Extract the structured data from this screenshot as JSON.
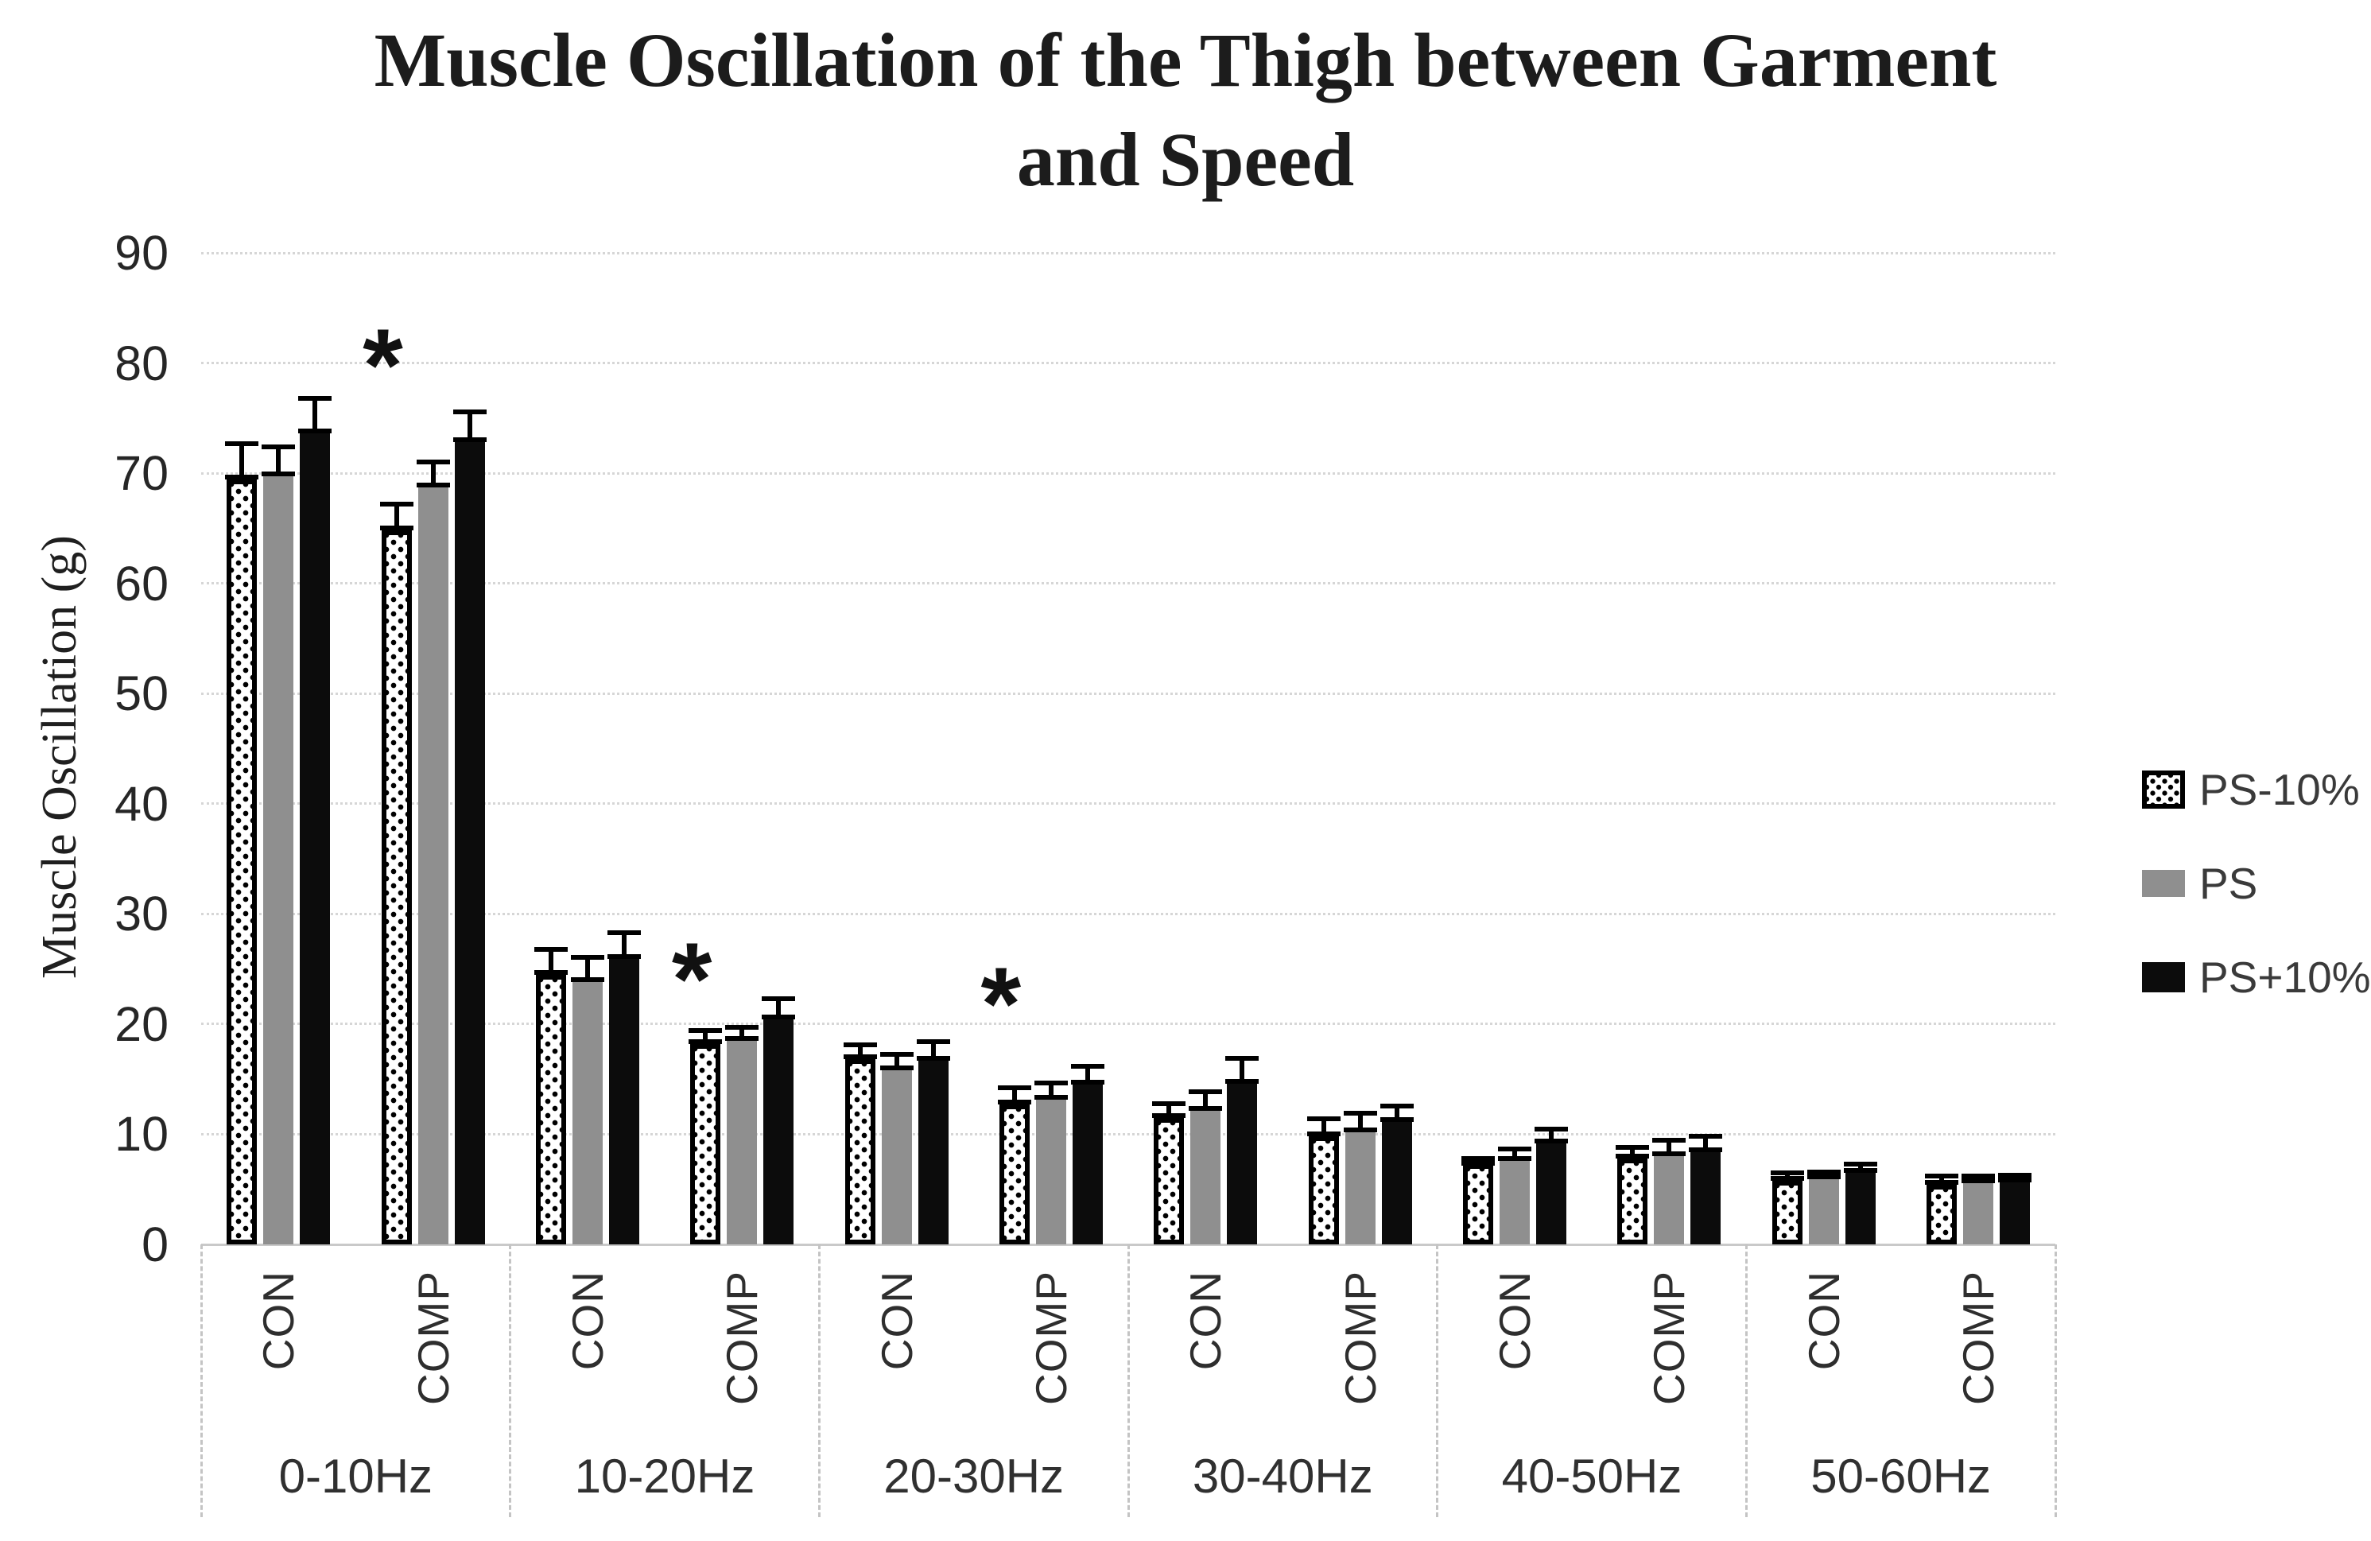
{
  "chart": {
    "title": "Muscle Oscillation of the Thigh between Garment and Speed",
    "title_lines": [
      "Muscle Oscillation of the Thigh between Garment",
      "and Speed"
    ],
    "y_axis": {
      "label": "Muscle Oscillation (g)",
      "min": 0,
      "max": 90,
      "step": 10,
      "tick_labels": [
        "0",
        "10",
        "20",
        "30",
        "40",
        "50",
        "60",
        "70",
        "80",
        "90"
      ]
    },
    "x_axis": {
      "condition_labels": [
        "CON",
        "COMP"
      ],
      "group_labels": [
        "0-10Hz",
        "10-20Hz",
        "20-30Hz",
        "30-40Hz",
        "40-50Hz",
        "50-60Hz"
      ]
    }
  },
  "chart_data": {
    "type": "bar",
    "title": "Muscle Oscillation of the Thigh between Garment and Speed",
    "xlabel": "",
    "ylabel": "Muscle Oscillation (g)",
    "ylim": [
      0,
      90
    ],
    "ytick_step": 10,
    "grid": "horizontal-dotted",
    "error_bars": "upper",
    "legend_position": "right",
    "series": [
      {
        "name": "PS-10%",
        "style": "dotted",
        "fill": "#ffffff",
        "border": "#000000"
      },
      {
        "name": "PS",
        "style": "gray",
        "fill": "#8f8f8f",
        "border": "none"
      },
      {
        "name": "PS+10%",
        "style": "black",
        "fill": "#0c0c0c",
        "border": "none"
      }
    ],
    "groups": [
      {
        "label": "0-10Hz",
        "subgroups": [
          {
            "label": "CON",
            "values": [
              69.4,
              69.7,
              73.6
            ],
            "errors": [
              3.5,
              2.9,
              3.4
            ]
          },
          {
            "label": "COMP",
            "values": [
              64.8,
              68.7,
              72.8
            ],
            "errors": [
              2.6,
              2.5,
              3.0
            ],
            "significance": {
              "marker": "*",
              "y": 82
            }
          }
        ]
      },
      {
        "label": "10-20Hz",
        "subgroups": [
          {
            "label": "CON",
            "values": [
              24.5,
              23.8,
              25.9
            ],
            "errors": [
              2.5,
              2.5,
              2.6
            ]
          },
          {
            "label": "COMP",
            "values": [
              18.2,
              18.5,
              20.4
            ],
            "errors": [
              1.4,
              1.4,
              2.1
            ],
            "significance": {
              "marker": "*",
              "y": 26.3
            }
          }
        ]
      },
      {
        "label": "20-30Hz",
        "subgroups": [
          {
            "label": "CON",
            "values": [
              16.8,
              15.8,
              16.7
            ],
            "errors": [
              1.5,
              1.7,
              1.9
            ]
          },
          {
            "label": "COMP",
            "values": [
              12.7,
              13.1,
              14.5
            ],
            "errors": [
              1.7,
              1.8,
              1.9
            ],
            "significance": {
              "marker": "*",
              "y": 24.0
            }
          }
        ]
      },
      {
        "label": "30-40Hz",
        "subgroups": [
          {
            "label": "CON",
            "values": [
              11.5,
              12.1,
              14.6
            ],
            "errors": [
              1.5,
              2.0,
              2.5
            ]
          },
          {
            "label": "COMP",
            "values": [
              9.8,
              10.2,
              11.1
            ],
            "errors": [
              1.8,
              1.9,
              1.7
            ]
          }
        ]
      },
      {
        "label": "40-50Hz",
        "subgroups": [
          {
            "label": "CON",
            "values": [
              7.3,
              7.6,
              9.2
            ],
            "errors": [
              0.7,
              1.3,
              1.5
            ]
          },
          {
            "label": "COMP",
            "values": [
              7.8,
              8.0,
              8.4
            ],
            "errors": [
              1.2,
              1.7,
              1.6
            ]
          }
        ]
      },
      {
        "label": "50-60Hz",
        "subgroups": [
          {
            "label": "CON",
            "values": [
              5.8,
              5.9,
              6.5
            ],
            "errors": [
              0.9,
              0.9,
              1.0
            ]
          },
          {
            "label": "COMP",
            "values": [
              5.4,
              5.6,
              5.8
            ],
            "errors": [
              1.0,
              0.8,
              0.7
            ]
          }
        ]
      }
    ]
  },
  "legend": {
    "entries": [
      "PS-10%",
      "PS",
      "PS+10%"
    ]
  },
  "colors": {
    "series_gray": "#8f8f8f",
    "series_black": "#0c0c0c",
    "gridline": "#d6d6d6",
    "separator": "#c4c4c4",
    "axis_text": "#262626"
  }
}
